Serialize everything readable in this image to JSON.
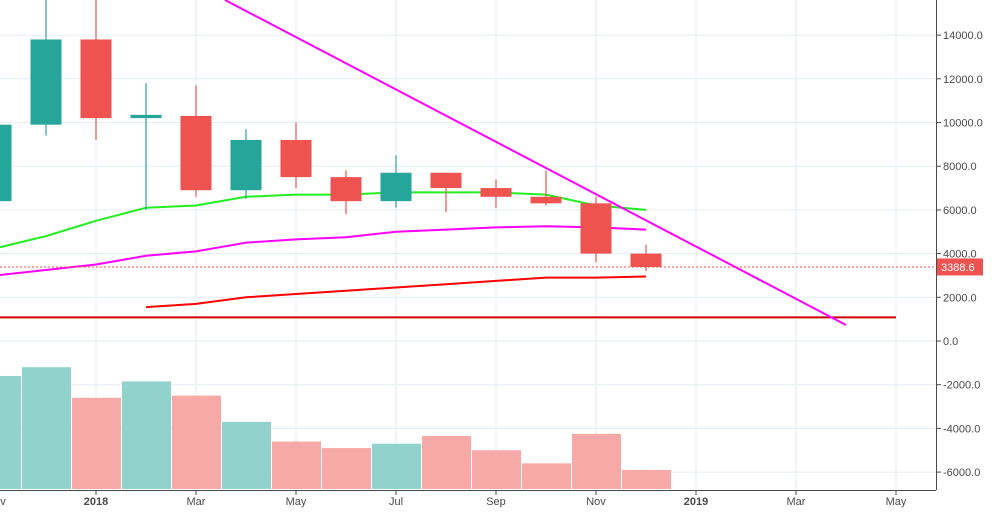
{
  "chart_data": {
    "type": "candlestick",
    "title": "",
    "interval": "1M",
    "x_ticks": [
      "Nov",
      "2018",
      "Mar",
      "May",
      "Jul",
      "Sep",
      "Nov",
      "2019",
      "Mar",
      "May"
    ],
    "y_ticks": [
      "14000.0",
      "12000.0",
      "10000.0",
      "8000.0",
      "6000.0",
      "4000.0",
      "2000.0",
      "0.0",
      "-2000.0",
      "-4000.0",
      "-6000.0"
    ],
    "ylim": [
      -7000,
      15500
    ],
    "last_price": "3388.6",
    "colors": {
      "up": "#26a69a",
      "down": "#ef5350",
      "up_volume": "#92d2cc",
      "down_volume": "#f7a9a7",
      "ma_green": "#22ee22",
      "ma_magenta": "#ff00ff",
      "ma_red": "#ff0000",
      "support_line": "#cc0000",
      "trendline": "#ff00ff",
      "price_tag": "#ef5350",
      "grid": "#e6edf5"
    },
    "candles": [
      {
        "month": "2017-11",
        "open": 6400,
        "high": 11000,
        "low": 5600,
        "close": 9900,
        "dir": "up"
      },
      {
        "month": "2017-12",
        "open": 9900,
        "high": 19800,
        "low": 9400,
        "close": 13800,
        "dir": "up"
      },
      {
        "month": "2018-01",
        "open": 13800,
        "high": 17200,
        "low": 9200,
        "close": 10200,
        "dir": "down"
      },
      {
        "month": "2018-02",
        "open": 10200,
        "high": 11800,
        "low": 6000,
        "close": 10350,
        "dir": "up"
      },
      {
        "month": "2018-03",
        "open": 10300,
        "high": 11700,
        "low": 6600,
        "close": 6900,
        "dir": "down"
      },
      {
        "month": "2018-04",
        "open": 6900,
        "high": 9700,
        "low": 6500,
        "close": 9200,
        "dir": "up"
      },
      {
        "month": "2018-05",
        "open": 9200,
        "high": 10000,
        "low": 7000,
        "close": 7500,
        "dir": "down"
      },
      {
        "month": "2018-06",
        "open": 7500,
        "high": 7800,
        "low": 5800,
        "close": 6400,
        "dir": "down"
      },
      {
        "month": "2018-07",
        "open": 6400,
        "high": 8500,
        "low": 6100,
        "close": 7700,
        "dir": "up"
      },
      {
        "month": "2018-08",
        "open": 7700,
        "high": 7700,
        "low": 5900,
        "close": 7000,
        "dir": "down"
      },
      {
        "month": "2018-09",
        "open": 7000,
        "high": 7400,
        "low": 6100,
        "close": 6600,
        "dir": "down"
      },
      {
        "month": "2018-10",
        "open": 6600,
        "high": 7800,
        "low": 6200,
        "close": 6300,
        "dir": "down"
      },
      {
        "month": "2018-11",
        "open": 6300,
        "high": 6600,
        "low": 3600,
        "close": 4000,
        "dir": "down"
      },
      {
        "month": "2018-12",
        "open": 4000,
        "high": 4400,
        "low": 3200,
        "close": 3388.6,
        "dir": "down"
      }
    ],
    "volume_bars": [
      {
        "month": "2017-11",
        "value": -1600,
        "dir": "up"
      },
      {
        "month": "2017-12",
        "value": -1200,
        "dir": "up"
      },
      {
        "month": "2018-01",
        "value": -2600,
        "dir": "down"
      },
      {
        "month": "2018-02",
        "value": -1850,
        "dir": "up"
      },
      {
        "month": "2018-03",
        "value": -2500,
        "dir": "down"
      },
      {
        "month": "2018-04",
        "value": -3700,
        "dir": "up"
      },
      {
        "month": "2018-05",
        "value": -4600,
        "dir": "down"
      },
      {
        "month": "2018-06",
        "value": -4900,
        "dir": "down"
      },
      {
        "month": "2018-07",
        "value": -4700,
        "dir": "up"
      },
      {
        "month": "2018-08",
        "value": -4350,
        "dir": "down"
      },
      {
        "month": "2018-09",
        "value": -5000,
        "dir": "down"
      },
      {
        "month": "2018-10",
        "value": -5600,
        "dir": "down"
      },
      {
        "month": "2018-11",
        "value": -4250,
        "dir": "down"
      },
      {
        "month": "2018-12",
        "value": -5900,
        "dir": "down"
      }
    ],
    "series": [
      {
        "name": "MA green",
        "color": "#22ee22",
        "points": [
          [
            -1,
            3700
          ],
          [
            1,
            4800
          ],
          [
            2,
            5500
          ],
          [
            3,
            6100
          ],
          [
            4,
            6200
          ],
          [
            5,
            6600
          ],
          [
            6,
            6700
          ],
          [
            7,
            6700
          ],
          [
            8,
            6800
          ],
          [
            9,
            6800
          ],
          [
            10,
            6800
          ],
          [
            11,
            6700
          ],
          [
            12,
            6200
          ],
          [
            13,
            6000
          ]
        ]
      },
      {
        "name": "MA magenta",
        "color": "#ff00ff",
        "points": [
          [
            -1,
            2400
          ],
          [
            0,
            3000
          ],
          [
            2,
            3500
          ],
          [
            3,
            3900
          ],
          [
            4,
            4100
          ],
          [
            5,
            4500
          ],
          [
            6,
            4650
          ],
          [
            7,
            4750
          ],
          [
            8,
            5000
          ],
          [
            9,
            5100
          ],
          [
            10,
            5200
          ],
          [
            11,
            5250
          ],
          [
            12,
            5200
          ],
          [
            13,
            5100
          ]
        ]
      },
      {
        "name": "MA red",
        "color": "#ff0000",
        "points": [
          [
            3,
            1550
          ],
          [
            4,
            1700
          ],
          [
            5,
            2000
          ],
          [
            6,
            2150
          ],
          [
            7,
            2300
          ],
          [
            8,
            2450
          ],
          [
            9,
            2600
          ],
          [
            10,
            2750
          ],
          [
            11,
            2900
          ],
          [
            12,
            2900
          ],
          [
            13,
            2950
          ]
        ]
      },
      {
        "name": "Support line",
        "color": "#cc0000",
        "points": [
          [
            -2,
            1080
          ],
          [
            16,
            1080
          ]
        ]
      },
      {
        "name": "Downtrend line",
        "color": "#ff00ff",
        "points": [
          [
            2.6,
            15500
          ],
          [
            15,
            700
          ]
        ]
      }
    ]
  }
}
